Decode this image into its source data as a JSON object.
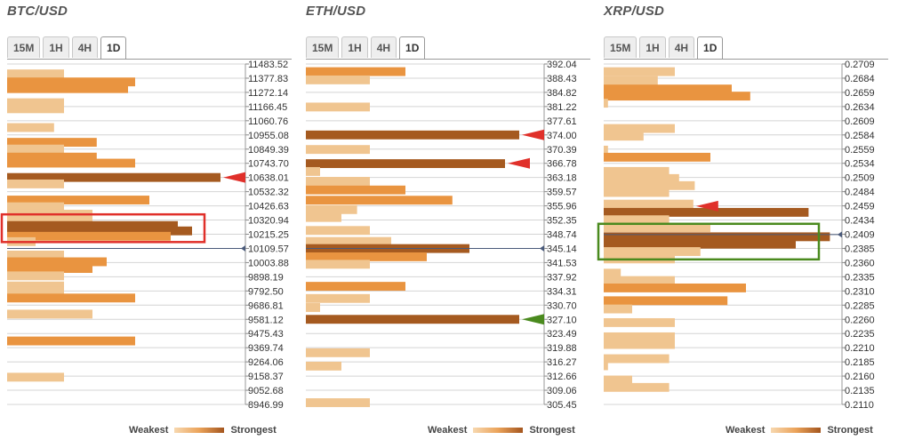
{
  "legend": {
    "weakest_label": "Weakest",
    "strongest_label": "Strongest"
  },
  "colors": {
    "weak": "#f0c590",
    "mid": "#e99440",
    "strong": "#a55a20",
    "red_marker": "#e0302a",
    "green_marker": "#4a8a1e",
    "current_marker": "#4a5a7a",
    "grid": "#d4d4d4"
  },
  "chart_data": [
    {
      "type": "bar",
      "title": "BTC/USD",
      "timeframes": [
        "15M",
        "1H",
        "4H",
        "1D"
      ],
      "active_timeframe": "1D",
      "ylim": [
        8946.99,
        11483.52
      ],
      "tick_labels": [
        "11483.52",
        "11377.83",
        "11272.14",
        "11166.45",
        "11060.76",
        "10955.08",
        "10849.39",
        "10743.70",
        "10638.01",
        "10532.32",
        "10426.63",
        "10320.94",
        "10215.25",
        "10109.57",
        "10003.88",
        "9898.19",
        "9792.50",
        "9686.81",
        "9581.12",
        "9475.43",
        "9369.74",
        "9264.06",
        "9158.37",
        "9052.68",
        "8946.99"
      ],
      "current_price": 10109.57,
      "bars": [
        {
          "price": 11410.0,
          "strength": 4,
          "shade": "weak"
        },
        {
          "price": 11350.0,
          "strength": 9,
          "shade": "mid"
        },
        {
          "price": 11300.0,
          "strength": 8.5,
          "shade": "mid"
        },
        {
          "price": 11195.0,
          "strength": 4,
          "shade": "weak"
        },
        {
          "price": 11150.0,
          "strength": 4,
          "shade": "weak"
        },
        {
          "price": 11010.0,
          "strength": 3.3,
          "shade": "weak"
        },
        {
          "price": 10900.0,
          "strength": 6.3,
          "shade": "mid"
        },
        {
          "price": 10850.0,
          "strength": 4,
          "shade": "weak"
        },
        {
          "price": 10790.0,
          "strength": 6.3,
          "shade": "mid"
        },
        {
          "price": 10745.0,
          "strength": 9,
          "shade": "mid"
        },
        {
          "price": 10638.0,
          "strength": 15,
          "shade": "strong"
        },
        {
          "price": 10590.0,
          "strength": 4,
          "shade": "weak"
        },
        {
          "price": 10470.0,
          "strength": 10,
          "shade": "mid"
        },
        {
          "price": 10420.0,
          "strength": 4,
          "shade": "weak"
        },
        {
          "price": 10365.0,
          "strength": 6,
          "shade": "weak"
        },
        {
          "price": 10320.0,
          "strength": 6,
          "shade": "weak"
        },
        {
          "price": 10280.0,
          "strength": 12,
          "shade": "strong"
        },
        {
          "price": 10240.0,
          "strength": 13,
          "shade": "strong"
        },
        {
          "price": 10200.0,
          "strength": 11.5,
          "shade": "mid"
        },
        {
          "price": 10160.0,
          "strength": 2,
          "shade": "weak"
        },
        {
          "price": 10060.0,
          "strength": 4,
          "shade": "weak"
        },
        {
          "price": 10010.0,
          "strength": 7,
          "shade": "mid"
        },
        {
          "price": 9960.0,
          "strength": 6,
          "shade": "mid"
        },
        {
          "price": 9905.0,
          "strength": 4,
          "shade": "weak"
        },
        {
          "price": 9830.0,
          "strength": 4,
          "shade": "weak"
        },
        {
          "price": 9790.0,
          "strength": 4,
          "shade": "weak"
        },
        {
          "price": 9740.0,
          "strength": 9,
          "shade": "mid"
        },
        {
          "price": 9620.0,
          "strength": 6,
          "shade": "weak"
        },
        {
          "price": 9420.0,
          "strength": 9,
          "shade": "mid"
        },
        {
          "price": 9150.0,
          "strength": 4,
          "shade": "weak"
        }
      ],
      "highlight_box": {
        "from": 10190.0,
        "to": 10330.0,
        "color": "red"
      },
      "markers": [
        {
          "price": 10638.0,
          "color": "red"
        }
      ]
    },
    {
      "type": "bar",
      "title": "ETH/USD",
      "timeframes": [
        "15M",
        "1H",
        "4H",
        "1D"
      ],
      "active_timeframe": "1D",
      "ylim": [
        305.45,
        392.04
      ],
      "tick_labels": [
        "392.04",
        "388.43",
        "384.82",
        "381.22",
        "377.61",
        "374.00",
        "370.39",
        "366.78",
        "363.18",
        "359.57",
        "355.96",
        "352.35",
        "348.74",
        "345.14",
        "341.53",
        "337.92",
        "334.31",
        "330.70",
        "327.10",
        "323.49",
        "319.88",
        "316.27",
        "312.66",
        "309.06",
        "305.45"
      ],
      "current_price": 345.14,
      "bars": [
        {
          "price": 390.1,
          "strength": 7,
          "shade": "mid"
        },
        {
          "price": 388.0,
          "strength": 4.5,
          "shade": "weak"
        },
        {
          "price": 381.1,
          "strength": 4.5,
          "shade": "weak"
        },
        {
          "price": 374.0,
          "strength": 15,
          "shade": "strong"
        },
        {
          "price": 370.3,
          "strength": 4.5,
          "shade": "weak"
        },
        {
          "price": 366.7,
          "strength": 14,
          "shade": "strong"
        },
        {
          "price": 364.7,
          "strength": 1,
          "shade": "weak"
        },
        {
          "price": 362.2,
          "strength": 4.5,
          "shade": "weak"
        },
        {
          "price": 360.0,
          "strength": 7,
          "shade": "mid"
        },
        {
          "price": 357.4,
          "strength": 10.3,
          "shade": "mid"
        },
        {
          "price": 355.0,
          "strength": 3.6,
          "shade": "weak"
        },
        {
          "price": 353.0,
          "strength": 2.5,
          "shade": "weak"
        },
        {
          "price": 349.7,
          "strength": 4.5,
          "shade": "weak"
        },
        {
          "price": 346.9,
          "strength": 6,
          "shade": "weak"
        },
        {
          "price": 345.1,
          "strength": 11.5,
          "shade": "strong"
        },
        {
          "price": 343.0,
          "strength": 8.5,
          "shade": "mid"
        },
        {
          "price": 341.1,
          "strength": 4.5,
          "shade": "weak"
        },
        {
          "price": 335.5,
          "strength": 7,
          "shade": "mid"
        },
        {
          "price": 332.4,
          "strength": 4.5,
          "shade": "weak"
        },
        {
          "price": 330.1,
          "strength": 1,
          "shade": "weak"
        },
        {
          "price": 327.1,
          "strength": 15,
          "shade": "strong"
        },
        {
          "price": 318.6,
          "strength": 4.5,
          "shade": "weak"
        },
        {
          "price": 315.2,
          "strength": 2.5,
          "shade": "weak"
        },
        {
          "price": 305.9,
          "strength": 4.5,
          "shade": "weak"
        }
      ],
      "markers": [
        {
          "price": 374.0,
          "color": "red"
        },
        {
          "price": 366.78,
          "color": "red"
        },
        {
          "price": 327.1,
          "color": "green"
        }
      ]
    },
    {
      "type": "bar",
      "title": "XRP/USD",
      "timeframes": [
        "15M",
        "1H",
        "4H",
        "1D"
      ],
      "active_timeframe": "1D",
      "ylim": [
        0.211,
        0.2709
      ],
      "tick_labels": [
        "0.2709",
        "0.2684",
        "0.2659",
        "0.2634",
        "0.2609",
        "0.2584",
        "0.2559",
        "0.2534",
        "0.2509",
        "0.2484",
        "0.2459",
        "0.2434",
        "0.2409",
        "0.2385",
        "0.2360",
        "0.2335",
        "0.2310",
        "0.2285",
        "0.2260",
        "0.2235",
        "0.2210",
        "0.2185",
        "0.2160",
        "0.2135",
        "0.2110"
      ],
      "current_price": 0.2409,
      "bars": [
        {
          "price": 0.26955,
          "strength": 5,
          "shade": "weak"
        },
        {
          "price": 0.268,
          "strength": 3.8,
          "shade": "weak"
        },
        {
          "price": 0.2665,
          "strength": 9,
          "shade": "mid"
        },
        {
          "price": 0.26525,
          "strength": 10.3,
          "shade": "mid"
        },
        {
          "price": 0.264,
          "strength": 0.3,
          "shade": "weak"
        },
        {
          "price": 0.25955,
          "strength": 5,
          "shade": "weak"
        },
        {
          "price": 0.2582,
          "strength": 2.8,
          "shade": "weak"
        },
        {
          "price": 0.25575,
          "strength": 0.3,
          "shade": "weak"
        },
        {
          "price": 0.2545,
          "strength": 7.5,
          "shade": "mid"
        },
        {
          "price": 0.252,
          "strength": 4.6,
          "shade": "weak"
        },
        {
          "price": 0.25075,
          "strength": 5.3,
          "shade": "weak"
        },
        {
          "price": 0.2495,
          "strength": 6.4,
          "shade": "weak"
        },
        {
          "price": 0.2483,
          "strength": 4.6,
          "shade": "weak"
        },
        {
          "price": 0.24625,
          "strength": 6.3,
          "shade": "weak"
        },
        {
          "price": 0.2448,
          "strength": 14.4,
          "shade": "strong"
        },
        {
          "price": 0.2435,
          "strength": 4.6,
          "shade": "weak"
        },
        {
          "price": 0.2421,
          "strength": 7.5,
          "shade": "weak"
        },
        {
          "price": 0.2405,
          "strength": 15.9,
          "shade": "strong"
        },
        {
          "price": 0.2392,
          "strength": 13.5,
          "shade": "strong"
        },
        {
          "price": 0.2379,
          "strength": 6.8,
          "shade": "weak"
        },
        {
          "price": 0.2366,
          "strength": 5,
          "shade": "weak"
        },
        {
          "price": 0.2341,
          "strength": 1.2,
          "shade": "weak"
        },
        {
          "price": 0.2328,
          "strength": 5,
          "shade": "weak"
        },
        {
          "price": 0.2315,
          "strength": 10,
          "shade": "mid"
        },
        {
          "price": 0.22925,
          "strength": 8.7,
          "shade": "mid"
        },
        {
          "price": 0.2278,
          "strength": 2,
          "shade": "weak"
        },
        {
          "price": 0.2254,
          "strength": 5,
          "shade": "weak"
        },
        {
          "price": 0.2229,
          "strength": 5,
          "shade": "weak"
        },
        {
          "price": 0.22155,
          "strength": 5,
          "shade": "weak"
        },
        {
          "price": 0.21905,
          "strength": 4.6,
          "shade": "weak"
        },
        {
          "price": 0.2178,
          "strength": 0.3,
          "shade": "weak"
        },
        {
          "price": 0.2153,
          "strength": 2,
          "shade": "weak"
        },
        {
          "price": 0.214,
          "strength": 4.6,
          "shade": "weak"
        }
      ],
      "highlight_box": {
        "from": 0.2373,
        "to": 0.242,
        "color": "green"
      },
      "markers": [
        {
          "price": 0.2459,
          "color": "red"
        }
      ]
    }
  ]
}
